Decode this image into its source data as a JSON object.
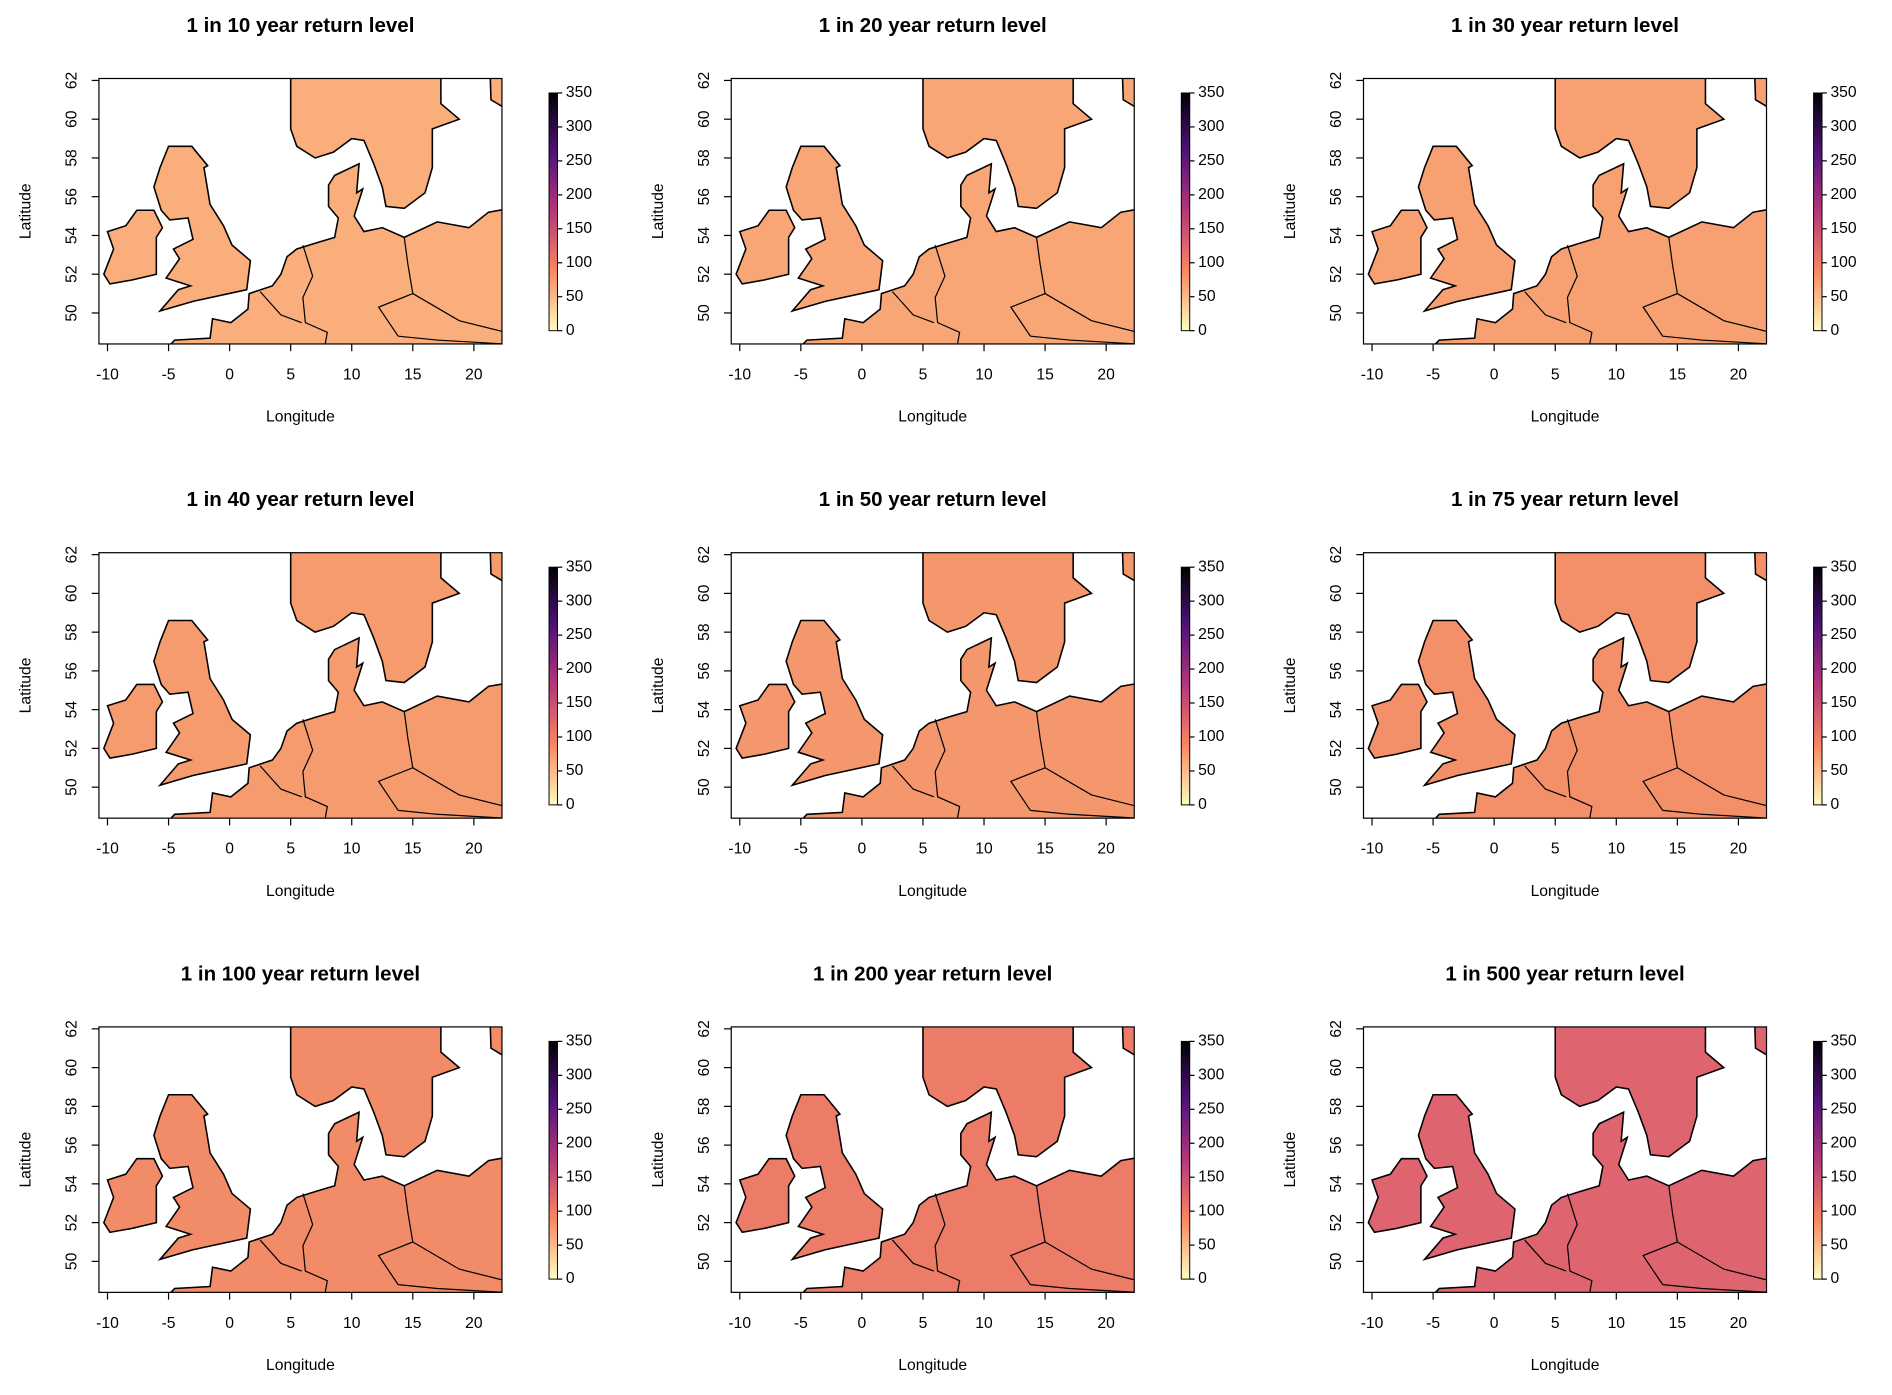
{
  "chart_data": [
    {
      "type": "map",
      "title": "1 in 10 year return level",
      "xlabel": "Longitude",
      "ylabel": "Latitude",
      "xlim": [
        -10.7,
        22.3
      ],
      "ylim": [
        48.4,
        62.1
      ],
      "xticks": [
        -10,
        -5,
        0,
        5,
        10,
        15,
        20
      ],
      "yticks": [
        50,
        52,
        54,
        56,
        58,
        60,
        62
      ],
      "color": "#f9ae7c",
      "colorbar_lim": [
        0,
        350
      ],
      "colorbar_ticks": [
        0,
        50,
        100,
        150,
        200,
        250,
        300,
        350
      ],
      "colorbar_colors": [
        "#fcfdbf",
        "#fb8761",
        "#b73779",
        "#51127c",
        "#000004"
      ]
    },
    {
      "type": "map",
      "title": "1 in 20 year return level",
      "xlabel": "Longitude",
      "ylabel": "Latitude",
      "xlim": [
        -10.7,
        22.3
      ],
      "ylim": [
        48.4,
        62.1
      ],
      "xticks": [
        -10,
        -5,
        0,
        5,
        10,
        15,
        20
      ],
      "yticks": [
        50,
        52,
        54,
        56,
        58,
        60,
        62
      ],
      "color": "#f8a676",
      "colorbar_lim": [
        0,
        350
      ],
      "colorbar_ticks": [
        0,
        50,
        100,
        150,
        200,
        250,
        300,
        350
      ],
      "colorbar_colors": [
        "#fcfdbf",
        "#fb8761",
        "#b73779",
        "#51127c",
        "#000004"
      ]
    },
    {
      "type": "map",
      "title": "1 in 30 year return level",
      "xlabel": "Longitude",
      "ylabel": "Latitude",
      "xlim": [
        -10.7,
        22.3
      ],
      "ylim": [
        48.4,
        62.1
      ],
      "xticks": [
        -10,
        -5,
        0,
        5,
        10,
        15,
        20
      ],
      "yticks": [
        50,
        52,
        54,
        56,
        58,
        60,
        62
      ],
      "color": "#f7a072",
      "colorbar_lim": [
        0,
        350
      ],
      "colorbar_ticks": [
        0,
        50,
        100,
        150,
        200,
        250,
        300,
        350
      ],
      "colorbar_colors": [
        "#fcfdbf",
        "#fb8761",
        "#b73779",
        "#51127c",
        "#000004"
      ]
    },
    {
      "type": "map",
      "title": "1 in 40 year return level",
      "xlabel": "Longitude",
      "ylabel": "Latitude",
      "xlim": [
        -10.7,
        22.3
      ],
      "ylim": [
        48.4,
        62.1
      ],
      "xticks": [
        -10,
        -5,
        0,
        5,
        10,
        15,
        20
      ],
      "yticks": [
        50,
        52,
        54,
        56,
        58,
        60,
        62
      ],
      "color": "#f69b6e",
      "colorbar_lim": [
        0,
        350
      ],
      "colorbar_ticks": [
        0,
        50,
        100,
        150,
        200,
        250,
        300,
        350
      ],
      "colorbar_colors": [
        "#fcfdbf",
        "#fb8761",
        "#b73779",
        "#51127c",
        "#000004"
      ]
    },
    {
      "type": "map",
      "title": "1 in 50 year return level",
      "xlabel": "Longitude",
      "ylabel": "Latitude",
      "xlim": [
        -10.7,
        22.3
      ],
      "ylim": [
        48.4,
        62.1
      ],
      "xticks": [
        -10,
        -5,
        0,
        5,
        10,
        15,
        20
      ],
      "yticks": [
        50,
        52,
        54,
        56,
        58,
        60,
        62
      ],
      "color": "#f5976c",
      "colorbar_lim": [
        0,
        350
      ],
      "colorbar_ticks": [
        0,
        50,
        100,
        150,
        200,
        250,
        300,
        350
      ],
      "colorbar_colors": [
        "#fcfdbf",
        "#fb8761",
        "#b73779",
        "#51127c",
        "#000004"
      ]
    },
    {
      "type": "map",
      "title": "1 in 75 year return level",
      "xlabel": "Longitude",
      "ylabel": "Latitude",
      "xlim": [
        -10.7,
        22.3
      ],
      "ylim": [
        48.4,
        62.1
      ],
      "xticks": [
        -10,
        -5,
        0,
        5,
        10,
        15,
        20
      ],
      "yticks": [
        50,
        52,
        54,
        56,
        58,
        60,
        62
      ],
      "color": "#f39069",
      "colorbar_lim": [
        0,
        350
      ],
      "colorbar_ticks": [
        0,
        50,
        100,
        150,
        200,
        250,
        300,
        350
      ],
      "colorbar_colors": [
        "#fcfdbf",
        "#fb8761",
        "#b73779",
        "#51127c",
        "#000004"
      ]
    },
    {
      "type": "map",
      "title": "1 in 100 year return level",
      "xlabel": "Longitude",
      "ylabel": "Latitude",
      "xlim": [
        -10.7,
        22.3
      ],
      "ylim": [
        48.4,
        62.1
      ],
      "xticks": [
        -10,
        -5,
        0,
        5,
        10,
        15,
        20
      ],
      "yticks": [
        50,
        52,
        54,
        56,
        58,
        60,
        62
      ],
      "color": "#f28b67",
      "colorbar_lim": [
        0,
        350
      ],
      "colorbar_ticks": [
        0,
        50,
        100,
        150,
        200,
        250,
        300,
        350
      ],
      "colorbar_colors": [
        "#fcfdbf",
        "#fb8761",
        "#b73779",
        "#51127c",
        "#000004"
      ]
    },
    {
      "type": "map",
      "title": "1 in 200 year return level",
      "xlabel": "Longitude",
      "ylabel": "Latitude",
      "xlim": [
        -10.7,
        22.3
      ],
      "ylim": [
        48.4,
        62.1
      ],
      "xticks": [
        -10,
        -5,
        0,
        5,
        10,
        15,
        20
      ],
      "yticks": [
        50,
        52,
        54,
        56,
        58,
        60,
        62
      ],
      "color": "#ec7b67",
      "colorbar_lim": [
        0,
        350
      ],
      "colorbar_ticks": [
        0,
        50,
        100,
        150,
        200,
        250,
        300,
        350
      ],
      "colorbar_colors": [
        "#fcfdbf",
        "#fb8761",
        "#b73779",
        "#51127c",
        "#000004"
      ]
    },
    {
      "type": "map",
      "title": "1 in 500 year return level",
      "xlabel": "Longitude",
      "ylabel": "Latitude",
      "xlim": [
        -10.7,
        22.3
      ],
      "ylim": [
        48.4,
        62.1
      ],
      "xticks": [
        -10,
        -5,
        0,
        5,
        10,
        15,
        20
      ],
      "yticks": [
        50,
        52,
        54,
        56,
        58,
        60,
        62
      ],
      "color": "#de6470",
      "colorbar_lim": [
        0,
        350
      ],
      "colorbar_ticks": [
        0,
        50,
        100,
        150,
        200,
        250,
        300,
        350
      ],
      "colorbar_colors": [
        "#fcfdbf",
        "#fb8761",
        "#b73779",
        "#51127c",
        "#000004"
      ]
    }
  ]
}
